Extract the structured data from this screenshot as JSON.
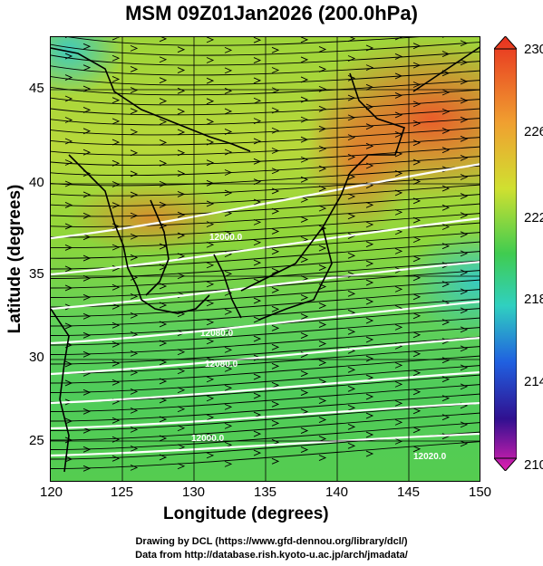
{
  "title": "MSM 09Z01Jan2026 (200.0hPa)",
  "xaxis": {
    "label": "Longitude (degrees)",
    "ticks": [
      "120",
      "125",
      "130",
      "135",
      "140",
      "145",
      "150"
    ]
  },
  "yaxis": {
    "label": "Latitude  (degrees)",
    "ticks": [
      "25",
      "30",
      "35",
      "40",
      "45"
    ]
  },
  "colorbar": {
    "ticks": [
      "230",
      "226",
      "222",
      "218",
      "214",
      "210"
    ]
  },
  "contour_labels": [
    "12000.0",
    "12080.0",
    "12080.0",
    "12000.0",
    "12020.0"
  ],
  "credits": {
    "line1": "Drawing by DCL (https://www.gfd-dennou.org/library/dcl/)",
    "line2": "Data from http://database.rish.kyoto-u.ac.jp/arch/jmadata/"
  }
}
